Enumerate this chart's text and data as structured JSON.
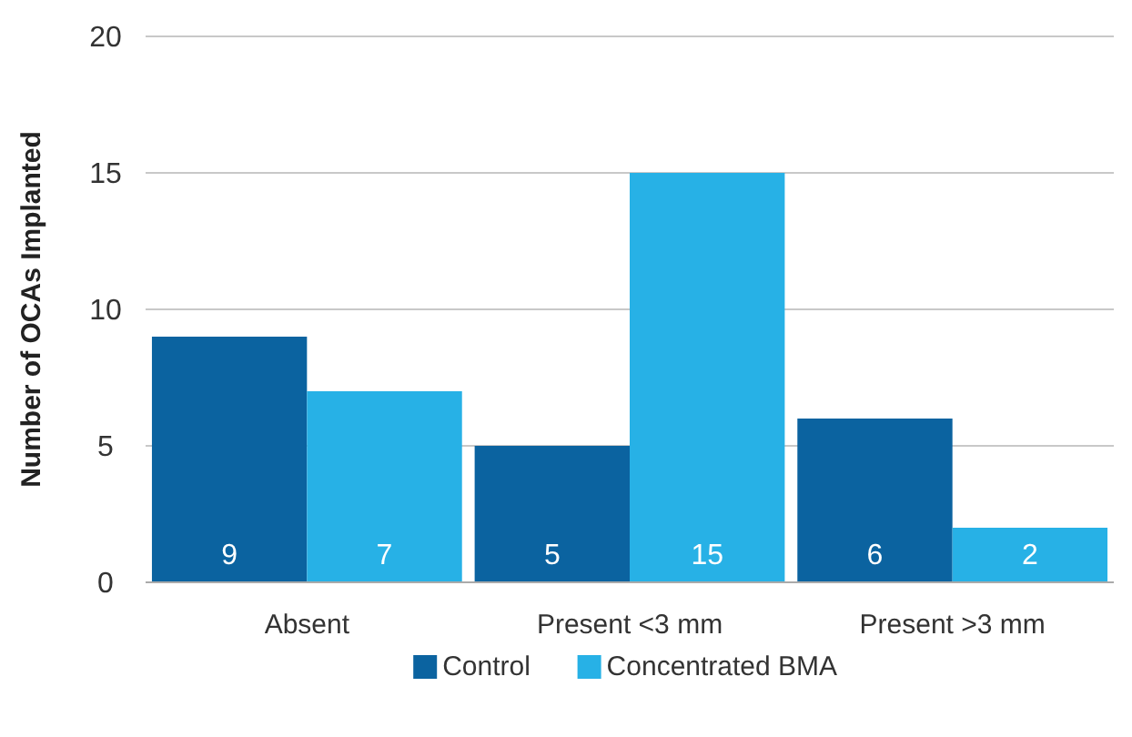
{
  "chart_data": {
    "type": "bar",
    "ylabel": "Number of OCAs Implanted",
    "categories": [
      "Absent",
      "Present <3 mm",
      "Present >3 mm"
    ],
    "series": [
      {
        "name": "Control",
        "color": "#0b63a0",
        "values": [
          9,
          5,
          6
        ]
      },
      {
        "name": "Concentrated BMA",
        "color": "#27b1e6",
        "values": [
          7,
          15,
          2
        ]
      }
    ],
    "ylim": [
      0,
      20
    ],
    "yticks": [
      0,
      5,
      10,
      15,
      20
    ],
    "grid": "y",
    "legend": "bottom",
    "data_labels": true
  }
}
